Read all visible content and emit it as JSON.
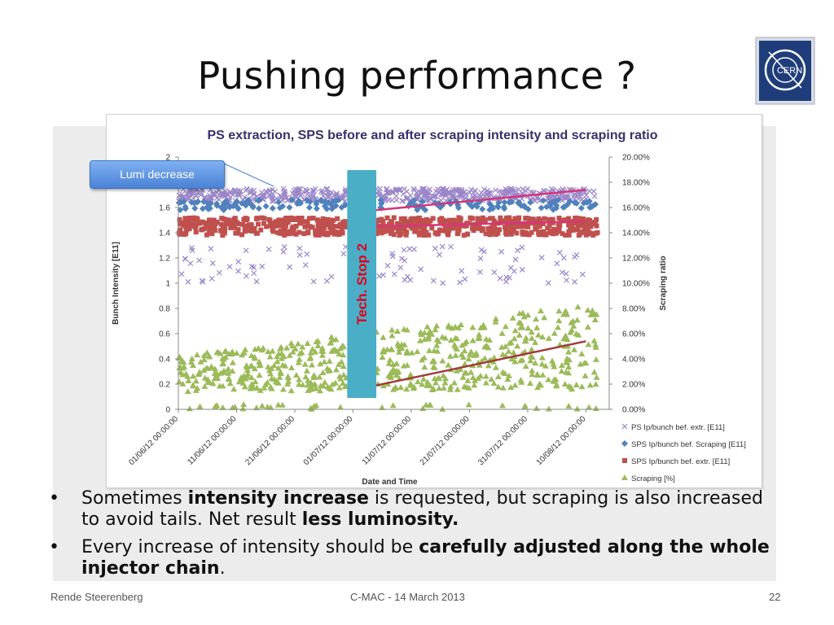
{
  "slide": {
    "title": "Pushing performance ?",
    "callout": "Lumi decrease",
    "tech_stop": "Tech. Stop 2",
    "bullets": [
      {
        "marker": "•",
        "parts": [
          {
            "t": "Sometimes ",
            "b": false
          },
          {
            "t": "intensity increase",
            "b": true
          },
          {
            "t": " is requested, but scraping is also increased to avoid tails. Net result ",
            "b": false
          },
          {
            "t": "less luminosity.",
            "b": true
          }
        ]
      },
      {
        "marker": "•",
        "parts": [
          {
            "t": "Every increase of intensity should be ",
            "b": false
          },
          {
            "t": "carefully adjusted along the whole injector chain",
            "b": true
          },
          {
            "t": ".",
            "b": false
          }
        ]
      }
    ],
    "footer": {
      "left": "Rende Steerenberg",
      "center": "C-MAC - 14 March 2013",
      "right": "22"
    },
    "logo_text": "CERN"
  },
  "chart_data": {
    "type": "scatter",
    "title": "PS extraction, SPS before and after scraping intensity and scraping ratio",
    "xlabel": "Date and Time",
    "ylabel": "Bunch Intensity [E11]",
    "y2label": "Scraping ratio",
    "x_range": [
      "01/06/12 00:00:00",
      "14/08/12 00:00:00"
    ],
    "x_ticks": [
      "01/06/12 00:00:00",
      "11/06/12 00:00:00",
      "21/06/12 00:00:00",
      "01/07/12 00:00:00",
      "11/07/12 00:00:00",
      "21/07/12 00:00:00",
      "31/07/12 00:00:00",
      "10/08/12 00:00:00"
    ],
    "ylim": [
      0,
      2
    ],
    "y_ticks": [
      "0",
      "0.2",
      "0.4",
      "0.6",
      "0.8",
      "1",
      "1.2",
      "1.4",
      "1.6",
      "1.8",
      "2"
    ],
    "y2lim": [
      0,
      20
    ],
    "y2_ticks": [
      "0.00%",
      "2.00%",
      "4.00%",
      "6.00%",
      "8.00%",
      "10.00%",
      "12.00%",
      "14.00%",
      "16.00%",
      "18.00%",
      "20.00%"
    ],
    "legend_position": "right",
    "tech_stop": {
      "start": "30/06/12",
      "end": "05/07/12"
    },
    "series": [
      {
        "name": "PS Ip/bunch bef. extr. [E11]",
        "marker": "x",
        "color": "#9a86c8",
        "band_center": 1.7,
        "band_spread": 0.05,
        "outliers_range": [
          1.0,
          1.3
        ]
      },
      {
        "name": "SPS Ip/bunch bef. Scraping [E11]",
        "marker": "diamond",
        "color": "#4f81bd",
        "band_center": 1.62,
        "band_spread": 0.04
      },
      {
        "name": "SPS Ip/bunch bef. extr. [E11]",
        "marker": "square",
        "color": "#c0504d",
        "band_center": 1.45,
        "band_spread": 0.07
      },
      {
        "name": "Scraping [%]",
        "marker": "triangle",
        "color": "#9bbb59",
        "band_center": 3.5,
        "band_spread": 2.0,
        "axis": "right"
      }
    ],
    "trendlines": [
      {
        "color": "#d6357a",
        "from": [
          "05/07/12",
          1.58
        ],
        "to": [
          "10/08/12",
          1.74
        ]
      },
      {
        "color": "#d6357a",
        "from": [
          "05/07/12",
          1.45
        ],
        "to": [
          "10/08/12",
          1.49
        ]
      },
      {
        "color": "#a23a3a",
        "axis": "right",
        "from": [
          "05/07/12",
          1.9
        ],
        "to": [
          "10/08/12",
          5.4
        ]
      }
    ],
    "colors": {
      "tech_stop_bar": "#4aaec7",
      "tech_stop_text": "#e0001b",
      "title": "#3a2f6b"
    }
  }
}
